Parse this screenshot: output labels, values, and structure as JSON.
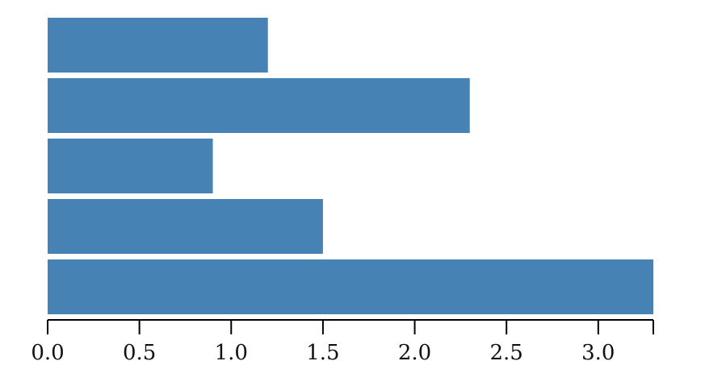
{
  "chart_data": {
    "type": "bar",
    "orientation": "horizontal",
    "values": [
      1.2,
      2.3,
      0.9,
      1.5,
      3.3
    ],
    "xlim": [
      0,
      3.3
    ],
    "xticks": [
      0.0,
      0.5,
      1.0,
      1.5,
      2.0,
      2.5,
      3.0
    ],
    "xtick_labels": [
      "0.0",
      "0.5",
      "1.0",
      "1.5",
      "2.0",
      "2.5",
      "3.0"
    ],
    "grid": false,
    "legend": "none",
    "colors": {
      "bar": "#4682b4",
      "axis": "#000000"
    }
  }
}
